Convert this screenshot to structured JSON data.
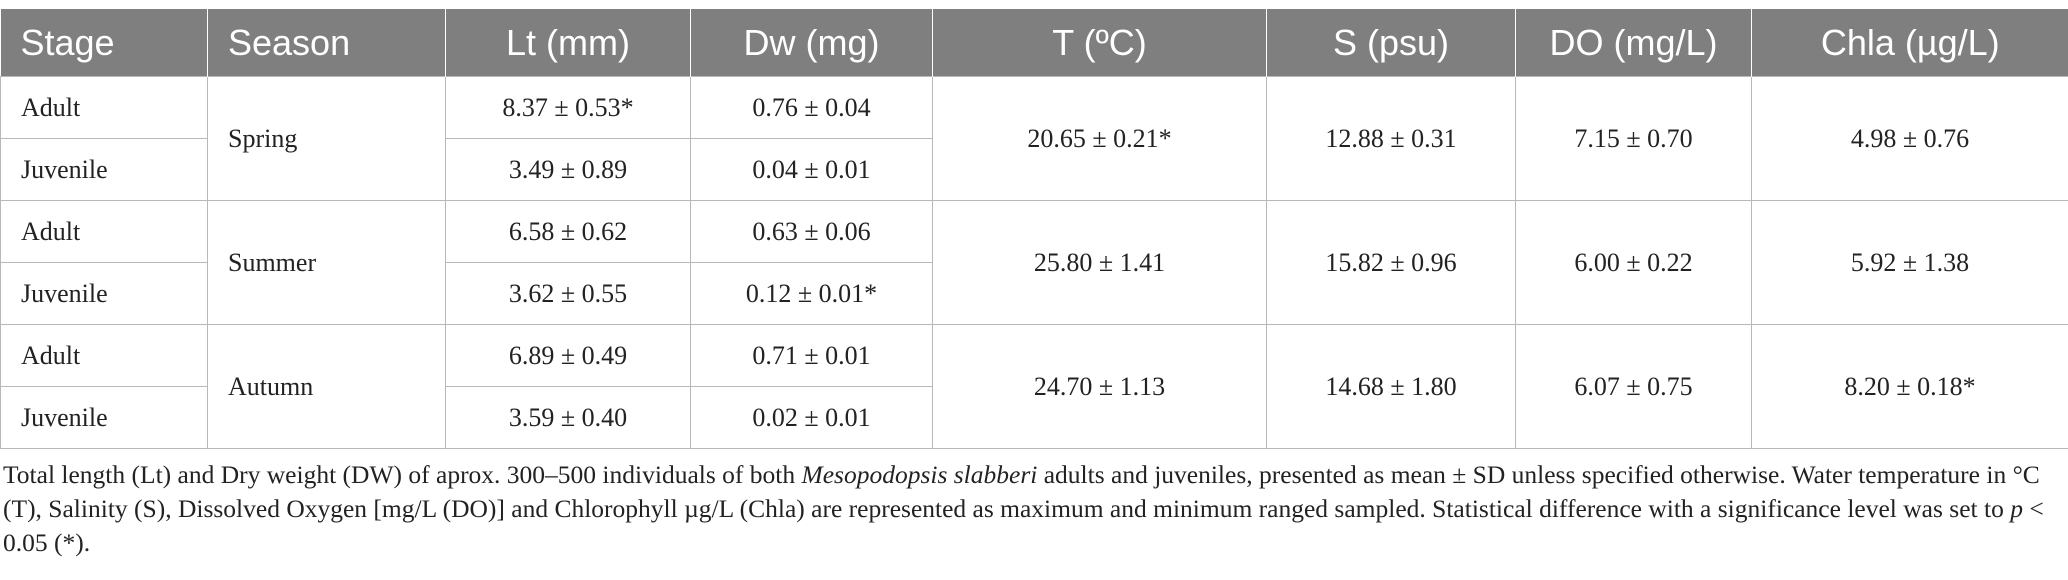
{
  "table": {
    "headers": [
      "Stage",
      "Season",
      "Lt (mm)",
      "Dw (mg)",
      "T (ºC)",
      "S (psu)",
      "DO (mg/L)",
      "Chla (µg/L)"
    ],
    "seasons": [
      {
        "name": "Spring",
        "T": "20.65 ± 0.21*",
        "S": "12.88 ± 0.31",
        "DO": "7.15 ± 0.70",
        "Chla": "4.98 ± 0.76",
        "rows": [
          {
            "stage": "Adult",
            "Lt": "8.37 ± 0.53*",
            "Dw": "0.76 ± 0.04"
          },
          {
            "stage": "Juvenile",
            "Lt": "3.49 ± 0.89",
            "Dw": "0.04 ± 0.01"
          }
        ]
      },
      {
        "name": "Summer",
        "T": "25.80 ± 1.41",
        "S": "15.82 ± 0.96",
        "DO": "6.00 ± 0.22",
        "Chla": "5.92 ± 1.38",
        "rows": [
          {
            "stage": "Adult",
            "Lt": "6.58 ± 0.62",
            "Dw": "0.63 ± 0.06"
          },
          {
            "stage": "Juvenile",
            "Lt": "3.62 ± 0.55",
            "Dw": "0.12 ± 0.01*"
          }
        ]
      },
      {
        "name": "Autumn",
        "T": "24.70 ± 1.13",
        "S": "14.68 ± 1.80",
        "DO": "6.07 ± 0.75",
        "Chla": "8.20 ± 0.18*",
        "rows": [
          {
            "stage": "Adult",
            "Lt": "6.89 ± 0.49",
            "Dw": "0.71 ± 0.01"
          },
          {
            "stage": "Juvenile",
            "Lt": "3.59 ± 0.40",
            "Dw": "0.02 ± 0.01"
          }
        ]
      }
    ]
  },
  "caption": {
    "part1": "Total length (Lt) and Dry weight (DW) of aprox. 300–500 individuals of both ",
    "species": "Mesopodopsis slabberi",
    "part2": " adults and juveniles, presented as mean ± SD unless specified otherwise. Water temperature in °C (T), Salinity (S), Dissolved Oxygen [mg/L (DO)] and Chlorophyll µg/L (Chla) are represented as maximum and minimum ranged sampled. Statistical difference with a significance level was set to ",
    "p_symbol": "p",
    "part3": " < 0.05 (*)."
  }
}
